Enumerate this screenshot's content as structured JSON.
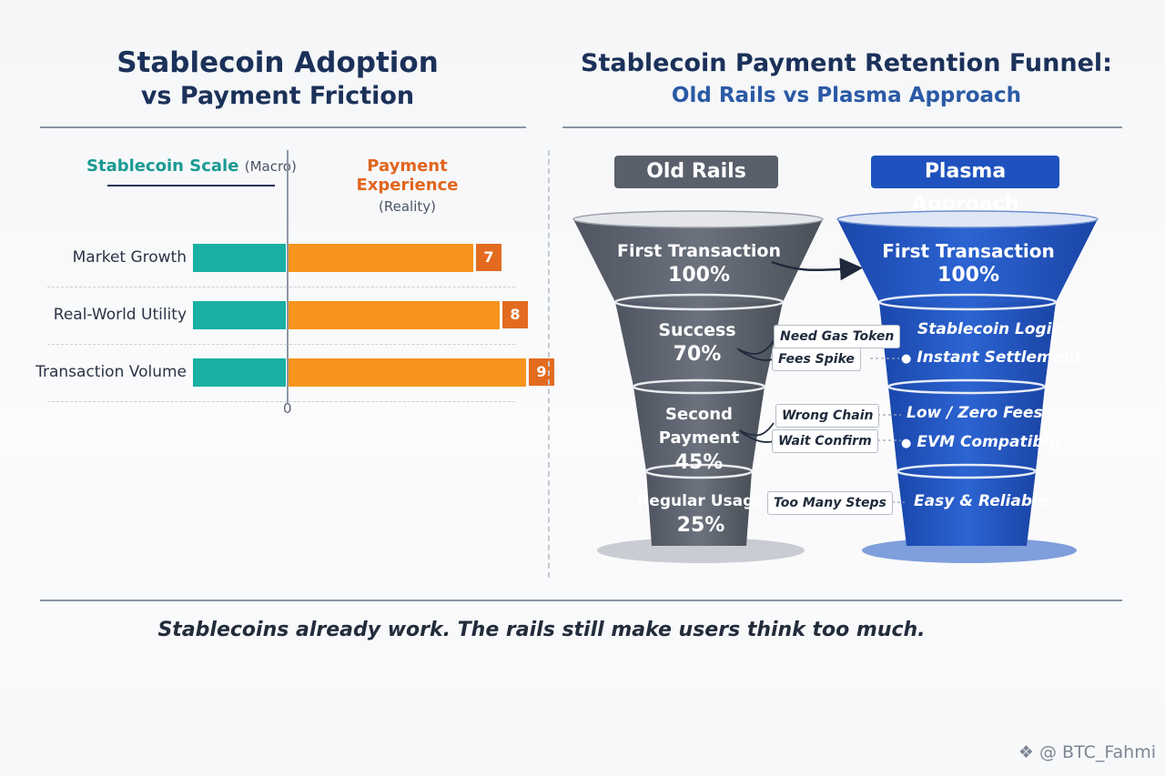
{
  "left_title": {
    "line1": "Stablecoin Adoption",
    "line2": "vs Payment Friction"
  },
  "right_title": {
    "line1": "Stablecoin Payment Retention Funnel:",
    "line2": "Old Rails vs Plasma Approach"
  },
  "chart_data": [
    {
      "type": "bar",
      "left_header": {
        "label": "Stablecoin Scale",
        "sub": "(Macro)"
      },
      "right_header": {
        "label": "Payment Experience",
        "sub": "(Reality)"
      },
      "categories": [
        "Market Growth",
        "Real-World Utility",
        "Transaction Volume"
      ],
      "series": [
        {
          "values": [
            null,
            null,
            null
          ],
          "color": "#1aafa4"
        },
        {
          "values": [
            7,
            8,
            9
          ],
          "color": "#f7941d"
        }
      ],
      "value_labels": [
        "7",
        "8",
        "9"
      ],
      "axis_zero_label": "0"
    },
    {
      "type": "funnel",
      "funnels": [
        {
          "label": "Old Rails",
          "color": "#595f6b",
          "stages": [
            {
              "name": "First Transaction",
              "value": "100%"
            },
            {
              "name": "Success",
              "value": "70%"
            },
            {
              "name": "Second Payment",
              "value": "45%"
            },
            {
              "name": "Regular Usage",
              "value": "25%"
            }
          ]
        },
        {
          "label": "Plasma Approach",
          "color": "#1f52be",
          "stages": [
            {
              "name": "First Transaction",
              "value": "100%"
            },
            {
              "items": [
                "Stablecoin Logic",
                "Instant Settlement"
              ]
            },
            {
              "items": [
                "Low / Zero Fees",
                "EVM Compatible"
              ]
            },
            {
              "items": [
                "Easy & Reliable"
              ]
            }
          ]
        }
      ],
      "friction_labels": [
        "Need Gas Token",
        "Fees Spike",
        "Wrong Chain",
        "Wait Confirm",
        "Too Many Steps"
      ]
    }
  ],
  "caption": "Stablecoins already work. The rails still make users think too much.",
  "watermark": "@ BTC_Fahmi"
}
